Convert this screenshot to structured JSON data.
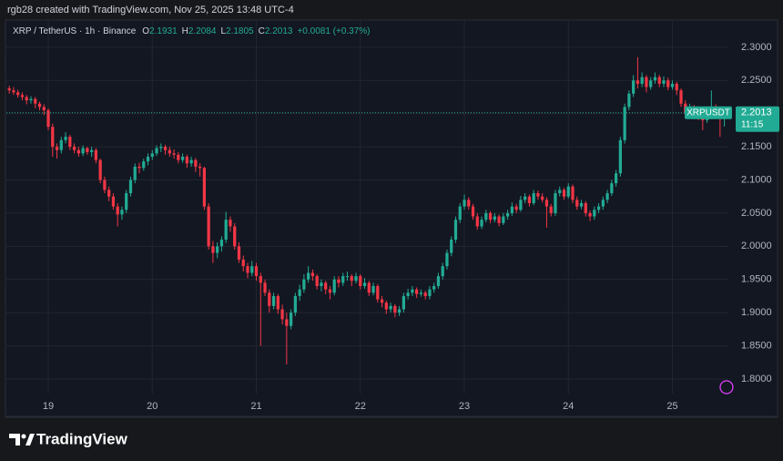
{
  "header": "rgb28 created with TradingView.com, Nov 25, 2025 13:48 UTC-4",
  "chart_data": {
    "type": "candlestick",
    "legend": {
      "symbol": "XRP / TetherUS · 1h · Binance",
      "items": [
        {
          "label": "O",
          "value": 2.1931
        },
        {
          "label": "H",
          "value": 2.2084
        },
        {
          "label": "L",
          "value": 2.1805
        },
        {
          "label": "C",
          "value": 2.2013
        }
      ],
      "change": "+0.0081 (+0.37%)"
    },
    "price_label": {
      "symbol": "XRPUSDT",
      "value": 2.2013,
      "countdown": "11:15"
    },
    "up_color": "#22ab94",
    "down_color": "#f23645",
    "ylim": [
      1.778,
      2.341
    ],
    "yticks": [
      {
        "value": 1.8,
        "label": "1.8000"
      },
      {
        "value": 1.85,
        "label": "1.8500"
      },
      {
        "value": 1.9,
        "label": "1.9000"
      },
      {
        "value": 1.95,
        "label": "1.9500"
      },
      {
        "value": 2.0,
        "label": "2.0000"
      },
      {
        "value": 2.05,
        "label": "2.0500"
      },
      {
        "value": 2.1,
        "label": "2.1000"
      },
      {
        "value": 2.15,
        "label": "2.1500"
      },
      {
        "value": 2.2,
        "label": "2.2000"
      },
      {
        "value": 2.25,
        "label": "2.2500"
      },
      {
        "value": 2.3,
        "label": "2.3000"
      }
    ],
    "grid": true,
    "categories": [
      null,
      null,
      null,
      null,
      null,
      null,
      null,
      null,
      null,
      "19",
      null,
      null,
      null,
      null,
      null,
      null,
      null,
      null,
      null,
      null,
      null,
      null,
      null,
      null,
      null,
      null,
      null,
      null,
      null,
      null,
      null,
      null,
      null,
      "20",
      null,
      null,
      null,
      null,
      null,
      null,
      null,
      null,
      null,
      null,
      null,
      null,
      null,
      null,
      null,
      null,
      null,
      null,
      null,
      null,
      null,
      null,
      null,
      "21",
      null,
      null,
      null,
      null,
      null,
      null,
      null,
      null,
      null,
      null,
      null,
      null,
      null,
      null,
      null,
      null,
      null,
      null,
      null,
      null,
      null,
      null,
      null,
      "22",
      null,
      null,
      null,
      null,
      null,
      null,
      null,
      null,
      null,
      null,
      null,
      null,
      null,
      null,
      null,
      null,
      null,
      null,
      null,
      null,
      null,
      null,
      null,
      "23",
      null,
      null,
      null,
      null,
      null,
      null,
      null,
      null,
      null,
      null,
      null,
      null,
      null,
      null,
      null,
      null,
      null,
      null,
      null,
      null,
      null,
      null,
      null,
      "24",
      null,
      null,
      null,
      null,
      null,
      null,
      null,
      null,
      null,
      null,
      null,
      null,
      null,
      null,
      null,
      null,
      null,
      null,
      null,
      null,
      null,
      null,
      null,
      "25",
      null,
      null,
      null,
      null,
      null,
      null,
      null,
      null,
      null,
      null,
      null,
      null
    ],
    "candles": [
      [
        2.238,
        2.242,
        2.23,
        2.235
      ],
      [
        2.235,
        2.24,
        2.228,
        2.232
      ],
      [
        2.232,
        2.236,
        2.224,
        2.228
      ],
      [
        2.228,
        2.232,
        2.22,
        2.225
      ],
      [
        2.225,
        2.228,
        2.214,
        2.22
      ],
      [
        2.22,
        2.226,
        2.215,
        2.222
      ],
      [
        2.222,
        2.225,
        2.208,
        2.215
      ],
      [
        2.215,
        2.218,
        2.205,
        2.21
      ],
      [
        2.21,
        2.214,
        2.198,
        2.205
      ],
      [
        2.205,
        2.208,
        2.175,
        2.18
      ],
      [
        2.18,
        2.185,
        2.135,
        2.15
      ],
      [
        2.15,
        2.155,
        2.132,
        2.145
      ],
      [
        2.145,
        2.165,
        2.14,
        2.16
      ],
      [
        2.16,
        2.172,
        2.155,
        2.165
      ],
      [
        2.165,
        2.168,
        2.145,
        2.15
      ],
      [
        2.15,
        2.155,
        2.14,
        2.145
      ],
      [
        2.145,
        2.15,
        2.135,
        2.14
      ],
      [
        2.14,
        2.152,
        2.136,
        2.148
      ],
      [
        2.148,
        2.15,
        2.138,
        2.142
      ],
      [
        2.142,
        2.15,
        2.135,
        2.145
      ],
      [
        2.145,
        2.148,
        2.125,
        2.13
      ],
      [
        2.13,
        2.132,
        2.095,
        2.1
      ],
      [
        2.1,
        2.105,
        2.08,
        2.085
      ],
      [
        2.085,
        2.09,
        2.068,
        2.075
      ],
      [
        2.075,
        2.08,
        2.055,
        2.06
      ],
      [
        2.06,
        2.065,
        2.03,
        2.048
      ],
      [
        2.048,
        2.06,
        2.04,
        2.055
      ],
      [
        2.055,
        2.085,
        2.05,
        2.08
      ],
      [
        2.08,
        2.105,
        2.075,
        2.1
      ],
      [
        2.1,
        2.125,
        2.095,
        2.12
      ],
      [
        2.12,
        2.126,
        2.11,
        2.118
      ],
      [
        2.118,
        2.132,
        2.114,
        2.128
      ],
      [
        2.128,
        2.14,
        2.122,
        2.135
      ],
      [
        2.135,
        2.145,
        2.13,
        2.14
      ],
      [
        2.14,
        2.152,
        2.136,
        2.148
      ],
      [
        2.148,
        2.155,
        2.142,
        2.15
      ],
      [
        2.15,
        2.153,
        2.138,
        2.145
      ],
      [
        2.145,
        2.15,
        2.135,
        2.14
      ],
      [
        2.14,
        2.146,
        2.132,
        2.138
      ],
      [
        2.138,
        2.142,
        2.125,
        2.13
      ],
      [
        2.13,
        2.14,
        2.126,
        2.135
      ],
      [
        2.135,
        2.138,
        2.118,
        2.125
      ],
      [
        2.125,
        2.135,
        2.12,
        2.13
      ],
      [
        2.13,
        2.133,
        2.112,
        2.12
      ],
      [
        2.12,
        2.125,
        2.105,
        2.118
      ],
      [
        2.118,
        2.12,
        2.055,
        2.06
      ],
      [
        2.06,
        2.065,
        1.995,
        2.0
      ],
      [
        2.0,
        2.008,
        1.975,
        1.99
      ],
      [
        1.99,
        2.006,
        1.982,
        2.0
      ],
      [
        2.0,
        2.015,
        1.992,
        2.01
      ],
      [
        2.01,
        2.052,
        2.005,
        2.04
      ],
      [
        2.04,
        2.045,
        2.022,
        2.03
      ],
      [
        2.03,
        2.035,
        1.995,
        2.0
      ],
      [
        2.0,
        2.006,
        1.975,
        1.98
      ],
      [
        1.98,
        1.986,
        1.962,
        1.97
      ],
      [
        1.97,
        1.975,
        1.952,
        1.96
      ],
      [
        1.96,
        1.978,
        1.955,
        1.97
      ],
      [
        1.97,
        1.975,
        1.948,
        1.955
      ],
      [
        1.955,
        1.96,
        1.85,
        1.945
      ],
      [
        1.945,
        1.95,
        1.925,
        1.93
      ],
      [
        1.93,
        1.935,
        1.9,
        1.91
      ],
      [
        1.91,
        1.93,
        1.905,
        1.925
      ],
      [
        1.925,
        1.928,
        1.898,
        1.905
      ],
      [
        1.905,
        1.912,
        1.882,
        1.89
      ],
      [
        1.89,
        1.9,
        1.822,
        1.88
      ],
      [
        1.88,
        1.905,
        1.875,
        1.9
      ],
      [
        1.9,
        1.93,
        1.895,
        1.925
      ],
      [
        1.925,
        1.942,
        1.918,
        1.935
      ],
      [
        1.935,
        1.958,
        1.93,
        1.95
      ],
      [
        1.95,
        1.97,
        1.945,
        1.96
      ],
      [
        1.96,
        1.965,
        1.948,
        1.955
      ],
      [
        1.955,
        1.958,
        1.935,
        1.94
      ],
      [
        1.94,
        1.95,
        1.932,
        1.945
      ],
      [
        1.945,
        1.948,
        1.928,
        1.935
      ],
      [
        1.935,
        1.94,
        1.92,
        1.93
      ],
      [
        1.93,
        1.955,
        1.926,
        1.95
      ],
      [
        1.95,
        1.955,
        1.938,
        1.945
      ],
      [
        1.945,
        1.96,
        1.94,
        1.955
      ],
      [
        1.955,
        1.962,
        1.948,
        1.955
      ],
      [
        1.955,
        1.958,
        1.94,
        1.948
      ],
      [
        1.948,
        1.96,
        1.944,
        1.955
      ],
      [
        1.955,
        1.958,
        1.935,
        1.94
      ],
      [
        1.94,
        1.952,
        1.936,
        1.945
      ],
      [
        1.945,
        1.948,
        1.925,
        1.93
      ],
      [
        1.93,
        1.945,
        1.926,
        1.94
      ],
      [
        1.94,
        1.943,
        1.915,
        1.92
      ],
      [
        1.92,
        1.925,
        1.908,
        1.915
      ],
      [
        1.915,
        1.918,
        1.898,
        1.905
      ],
      [
        1.905,
        1.915,
        1.9,
        1.91
      ],
      [
        1.91,
        1.913,
        1.893,
        1.9
      ],
      [
        1.9,
        1.91,
        1.895,
        1.905
      ],
      [
        1.905,
        1.93,
        1.9,
        1.925
      ],
      [
        1.925,
        1.936,
        1.92,
        1.93
      ],
      [
        1.93,
        1.94,
        1.925,
        1.935
      ],
      [
        1.935,
        1.938,
        1.922,
        1.928
      ],
      [
        1.928,
        1.935,
        1.924,
        1.93
      ],
      [
        1.93,
        1.933,
        1.92,
        1.925
      ],
      [
        1.925,
        1.94,
        1.92,
        1.935
      ],
      [
        1.935,
        1.945,
        1.93,
        1.94
      ],
      [
        1.94,
        1.96,
        1.936,
        1.955
      ],
      [
        1.955,
        1.975,
        1.95,
        1.97
      ],
      [
        1.97,
        1.995,
        1.965,
        1.99
      ],
      [
        1.99,
        2.015,
        1.985,
        2.01
      ],
      [
        2.01,
        2.045,
        2.005,
        2.04
      ],
      [
        2.04,
        2.065,
        2.035,
        2.06
      ],
      [
        2.06,
        2.078,
        2.055,
        2.07
      ],
      [
        2.07,
        2.074,
        2.055,
        2.06
      ],
      [
        2.06,
        2.064,
        2.04,
        2.045
      ],
      [
        2.045,
        2.05,
        2.025,
        2.03
      ],
      [
        2.03,
        2.045,
        2.026,
        2.04
      ],
      [
        2.04,
        2.055,
        2.036,
        2.05
      ],
      [
        2.05,
        2.053,
        2.035,
        2.04
      ],
      [
        2.04,
        2.05,
        2.036,
        2.045
      ],
      [
        2.045,
        2.048,
        2.03,
        2.035
      ],
      [
        2.035,
        2.05,
        2.032,
        2.045
      ],
      [
        2.045,
        2.055,
        2.04,
        2.05
      ],
      [
        2.05,
        2.066,
        2.046,
        2.06
      ],
      [
        2.06,
        2.064,
        2.05,
        2.055
      ],
      [
        2.055,
        2.076,
        2.052,
        2.07
      ],
      [
        2.07,
        2.08,
        2.065,
        2.075
      ],
      [
        2.075,
        2.078,
        2.06,
        2.065
      ],
      [
        2.065,
        2.085,
        2.062,
        2.08
      ],
      [
        2.08,
        2.084,
        2.07,
        2.075
      ],
      [
        2.075,
        2.08,
        2.066,
        2.07
      ],
      [
        2.07,
        2.074,
        2.028,
        2.06
      ],
      [
        2.06,
        2.064,
        2.045,
        2.05
      ],
      [
        2.05,
        2.085,
        2.046,
        2.08
      ],
      [
        2.08,
        2.09,
        2.075,
        2.085
      ],
      [
        2.085,
        2.088,
        2.07,
        2.075
      ],
      [
        2.075,
        2.095,
        2.072,
        2.09
      ],
      [
        2.09,
        2.093,
        2.065,
        2.07
      ],
      [
        2.07,
        2.075,
        2.055,
        2.06
      ],
      [
        2.06,
        2.07,
        2.056,
        2.065
      ],
      [
        2.065,
        2.068,
        2.045,
        2.05
      ],
      [
        2.05,
        2.054,
        2.038,
        2.045
      ],
      [
        2.045,
        2.06,
        2.04,
        2.055
      ],
      [
        2.055,
        2.065,
        2.05,
        2.06
      ],
      [
        2.06,
        2.075,
        2.055,
        2.07
      ],
      [
        2.07,
        2.085,
        2.065,
        2.08
      ],
      [
        2.08,
        2.1,
        2.076,
        2.095
      ],
      [
        2.095,
        2.115,
        2.09,
        2.11
      ],
      [
        2.11,
        2.165,
        2.105,
        2.16
      ],
      [
        2.16,
        2.215,
        2.155,
        2.21
      ],
      [
        2.21,
        2.235,
        2.205,
        2.23
      ],
      [
        2.23,
        2.258,
        2.225,
        2.25
      ],
      [
        2.25,
        2.285,
        2.238,
        2.245
      ],
      [
        2.245,
        2.262,
        2.24,
        2.255
      ],
      [
        2.255,
        2.258,
        2.232,
        2.24
      ],
      [
        2.24,
        2.255,
        2.236,
        2.25
      ],
      [
        2.25,
        2.262,
        2.245,
        2.255
      ],
      [
        2.255,
        2.258,
        2.24,
        2.245
      ],
      [
        2.245,
        2.256,
        2.24,
        2.25
      ],
      [
        2.25,
        2.254,
        2.235,
        2.24
      ],
      [
        2.24,
        2.25,
        2.236,
        2.245
      ],
      [
        2.245,
        2.248,
        2.228,
        2.235
      ],
      [
        2.235,
        2.238,
        2.21,
        2.215
      ],
      [
        2.215,
        2.22,
        2.195,
        2.2
      ],
      [
        2.2,
        2.215,
        2.196,
        2.21
      ],
      [
        2.21,
        2.213,
        2.198,
        2.205
      ],
      [
        2.205,
        2.208,
        2.19,
        2.195
      ],
      [
        2.195,
        2.198,
        2.175,
        2.19
      ],
      [
        2.19,
        2.21,
        2.186,
        2.205
      ],
      [
        2.205,
        2.235,
        2.2,
        2.21
      ],
      [
        2.21,
        2.214,
        2.195,
        2.205
      ],
      [
        2.205,
        2.208,
        2.165,
        2.1931
      ],
      [
        2.1931,
        2.2084,
        2.1805,
        2.2013
      ]
    ]
  },
  "footer": "TradingView"
}
